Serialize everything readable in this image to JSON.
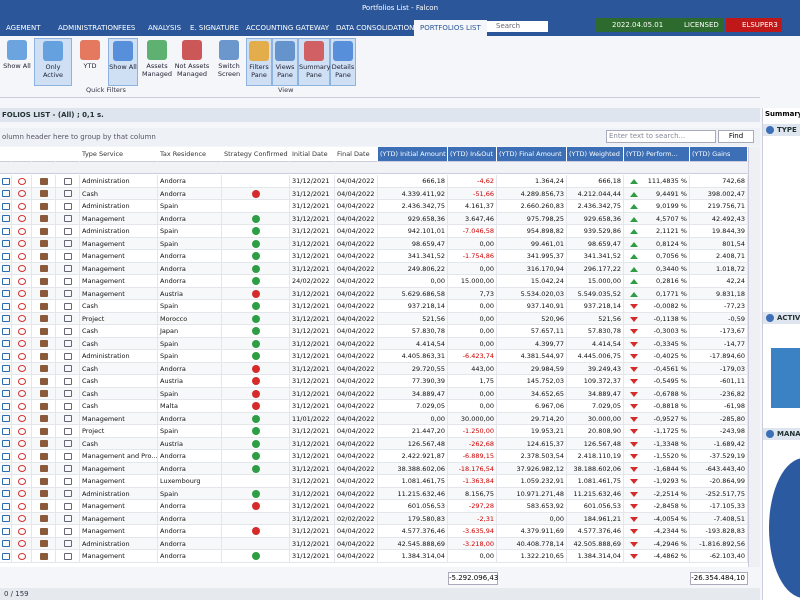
{
  "window_title": "Portfolios List - Falcon",
  "menu": [
    "AGEMENT",
    "ADMINISTRATION",
    "FEES",
    "ANALYSIS",
    "E. SIGNATURE",
    "ACCOUNTING GATEWAY",
    "DATA CONSOLIDATION",
    "PORTFOLIOS LIST"
  ],
  "search_placeholder": "Search",
  "status": {
    "version": "2022.04.05.01",
    "license": "LICENSED",
    "user": "ELSUPER3"
  },
  "ribbon": {
    "quick_filters": [
      "Show All",
      "Only Active",
      "YTD",
      "Show All",
      "Assets Managed",
      "Not Assets Managed"
    ],
    "quick_filters_label": "Quick Filters",
    "view": [
      "Switch Screen",
      "Filters Pane",
      "Views Pane",
      "Summary Pane",
      "Details Pane"
    ],
    "view_label": "View"
  },
  "list_title": "FOLIOS LIST - (All) ; 0,1 s.",
  "group_hint": "olumn header here to group by that column",
  "find_placeholder": "Enter text to search...",
  "find_button": "Find",
  "table": {
    "columns": [
      "Type Service",
      "Tax Residence",
      "Strategy Confirmed",
      "Initial Date",
      "Final Date",
      "(YTD) Initial Amount",
      "(YTD) In&Out",
      "(YTD) Final Amount",
      "(YTD) Weighted",
      "(YTD) Perform...",
      "(YTD) Gains"
    ],
    "rows": [
      [
        "Administration",
        "Andorra",
        "31/12/2021",
        "04/04/2022",
        "666,18",
        "-4,62",
        "1.364,24",
        "666,18",
        "111,4835 %",
        "742,68"
      ],
      [
        "Cash",
        "Andorra",
        "31/12/2021",
        "04/04/2022",
        "4.339.411,92",
        "-51,66",
        "4.289.856,73",
        "4.212.044,44",
        "9,4491 %",
        "398.002,47"
      ],
      [
        "Administration",
        "Spain",
        "31/12/2021",
        "04/04/2022",
        "2.436.342,75",
        "4.161,37",
        "2.660.260,83",
        "2.436.342,75",
        "9,0199 %",
        "219.756,71"
      ],
      [
        "Management",
        "Andorra",
        "31/12/2021",
        "04/04/2022",
        "929.658,36",
        "3.647,46",
        "975.798,25",
        "929.658,36",
        "4,5707 %",
        "42.492,43"
      ],
      [
        "Administration",
        "Spain",
        "31/12/2021",
        "04/04/2022",
        "942.101,01",
        "-7.046,58",
        "954.898,82",
        "939.529,86",
        "2,1121 %",
        "19.844,39"
      ],
      [
        "Management",
        "Spain",
        "31/12/2021",
        "04/04/2022",
        "98.659,47",
        "0,00",
        "99.461,01",
        "98.659,47",
        "0,8124 %",
        "801,54"
      ],
      [
        "Management",
        "Andorra",
        "31/12/2021",
        "04/04/2022",
        "341.341,52",
        "-1.754,86",
        "341.995,37",
        "341.341,52",
        "0,7056 %",
        "2.408,71"
      ],
      [
        "Management",
        "Andorra",
        "31/12/2021",
        "04/04/2022",
        "249.806,22",
        "0,00",
        "316.170,94",
        "296.177,22",
        "0,3440 %",
        "1.018,72"
      ],
      [
        "Management",
        "Andorra",
        "24/02/2022",
        "04/04/2022",
        "0,00",
        "15.000,00",
        "15.042,24",
        "15.000,00",
        "0,2816 %",
        "42,24"
      ],
      [
        "Management",
        "Austria",
        "31/12/2021",
        "04/04/2022",
        "5.629.686,58",
        "7,73",
        "5.534.020,03",
        "5.549.035,52",
        "0,1771 %",
        "9.831,18"
      ],
      [
        "Cash",
        "Spain",
        "31/12/2021",
        "04/04/2022",
        "937.218,14",
        "0,00",
        "937.140,91",
        "937.218,14",
        "-0,0082 %",
        "-77,23"
      ],
      [
        "Project",
        "Morocco",
        "31/12/2021",
        "04/04/2022",
        "521,56",
        "0,00",
        "520,96",
        "521,56",
        "-0,1138 %",
        "-0,59"
      ],
      [
        "Cash",
        "Japan",
        "31/12/2021",
        "04/04/2022",
        "57.830,78",
        "0,00",
        "57.657,11",
        "57.830,78",
        "-0,3003 %",
        "-173,67"
      ],
      [
        "Cash",
        "Spain",
        "31/12/2021",
        "04/04/2022",
        "4.414,54",
        "0,00",
        "4.399,77",
        "4.414,54",
        "-0,3345 %",
        "-14,77"
      ],
      [
        "Administration",
        "Spain",
        "31/12/2021",
        "04/04/2022",
        "4.405.863,31",
        "-6.423,74",
        "4.381.544,97",
        "4.445.006,75",
        "-0,4025 %",
        "-17.894,60"
      ],
      [
        "Cash",
        "Andorra",
        "31/12/2021",
        "04/04/2022",
        "29.720,55",
        "443,00",
        "29.984,59",
        "39.249,43",
        "-0,4561 %",
        "-179,03"
      ],
      [
        "Cash",
        "Austria",
        "31/12/2021",
        "04/04/2022",
        "77.390,39",
        "1,75",
        "145.752,03",
        "109.372,37",
        "-0,5495 %",
        "-601,11"
      ],
      [
        "Cash",
        "Spain",
        "31/12/2021",
        "04/04/2022",
        "34.889,47",
        "0,00",
        "34.652,65",
        "34.889,47",
        "-0,6788 %",
        "-236,82"
      ],
      [
        "Cash",
        "Malta",
        "31/12/2021",
        "04/04/2022",
        "7.029,05",
        "0,00",
        "6.967,06",
        "7.029,05",
        "-0,8818 %",
        "-61,98"
      ],
      [
        "Management",
        "Andorra",
        "11/01/2022",
        "04/04/2022",
        "0,00",
        "30.000,00",
        "29.714,20",
        "30.000,00",
        "-0,9527 %",
        "-285,80"
      ],
      [
        "Project",
        "Spain",
        "31/12/2021",
        "04/04/2022",
        "21.447,20",
        "-1.250,00",
        "19.953,21",
        "20.808,90",
        "-1,1725 %",
        "-243,98"
      ],
      [
        "Cash",
        "Austria",
        "31/12/2021",
        "04/04/2022",
        "126.567,48",
        "-262,68",
        "124.615,37",
        "126.567,48",
        "-1,3348 %",
        "-1.689,42"
      ],
      [
        "Management and Pro...",
        "Andorra",
        "31/12/2021",
        "04/04/2022",
        "2.422.921,87",
        "-6.889,15",
        "2.378.503,54",
        "2.418.110,19",
        "-1,5520 %",
        "-37.529,19"
      ],
      [
        "Management",
        "Andorra",
        "31/12/2021",
        "04/04/2022",
        "38.388.602,06",
        "-18.176,54",
        "37.926.982,12",
        "38.188.602,06",
        "-1,6844 %",
        "-643.443,40"
      ],
      [
        "Management",
        "Luxembourg",
        "31/12/2021",
        "04/04/2022",
        "1.081.461,75",
        "-1.363,84",
        "1.059.232,91",
        "1.081.461,75",
        "-1,9293 %",
        "-20.864,99"
      ],
      [
        "Administration",
        "Spain",
        "31/12/2021",
        "04/04/2022",
        "11.215.632,46",
        "8.156,75",
        "10.971.271,48",
        "11.215.632,46",
        "-2,2514 %",
        "-252.517,75"
      ],
      [
        "Management",
        "Andorra",
        "31/12/2021",
        "04/04/2022",
        "601.056,53",
        "-297,28",
        "583.653,92",
        "601.056,53",
        "-2,8458 %",
        "-17.105,33"
      ],
      [
        "Management",
        "Andorra",
        "31/12/2021",
        "02/02/2022",
        "179.580,83",
        "-2,31",
        "0,00",
        "184.961,21",
        "-4,0054 %",
        "-7.408,51"
      ],
      [
        "Management",
        "Andorra",
        "31/12/2021",
        "04/04/2022",
        "4.577.376,46",
        "-3.635,94",
        "4.379.911,69",
        "4.577.376,46",
        "-4,2344 %",
        "-193.828,83"
      ],
      [
        "Administration",
        "Andorra",
        "31/12/2021",
        "04/04/2022",
        "42.545.888,69",
        "-3.218,00",
        "40.408.778,14",
        "42.505.888,69",
        "-4,2946 %",
        "-1.816.892,56"
      ],
      [
        "Management",
        "Andorra",
        "31/12/2021",
        "04/04/2022",
        "1.384.314,04",
        "0,00",
        "1.322.210,65",
        "1.384.314,04",
        "-4,4862 %",
        "-62.103,40"
      ]
    ],
    "totals": {
      "in_out": "-5.292.096,43",
      "gains": "-26.354.484,10"
    }
  },
  "pager": "0 / 159",
  "summary": {
    "title": "Summary",
    "sections": [
      "TYPE",
      "ACTIVE",
      "MANA"
    ]
  }
}
